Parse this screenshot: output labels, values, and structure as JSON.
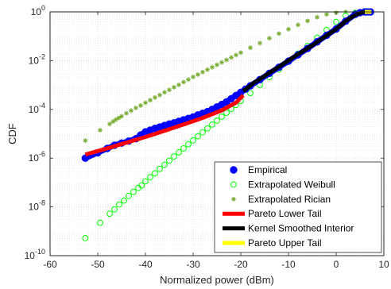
{
  "chart_data": {
    "type": "scatter",
    "title": "",
    "xlabel": "Normalized power (dBm)",
    "ylabel": "CDF",
    "xlim": [
      -60,
      10
    ],
    "ylim_log10": [
      -10,
      0
    ],
    "y_scale": "log",
    "grid": "major and minor, dotted",
    "legend_position": "bottom-right",
    "x_ticks": [
      "-60",
      "-50",
      "-40",
      "-30",
      "-20",
      "-10",
      "0",
      "10"
    ],
    "y_ticks": [
      {
        "base": "10",
        "exp": "-10"
      },
      {
        "base": "10",
        "exp": "-8"
      },
      {
        "base": "10",
        "exp": "-6"
      },
      {
        "base": "10",
        "exp": "-4"
      },
      {
        "base": "10",
        "exp": "-2"
      },
      {
        "base": "10",
        "exp": "0"
      }
    ],
    "series": [
      {
        "name": "Empirical",
        "marker": "filled-circle",
        "color": "#0000ff",
        "x": [
          -52.6,
          -50.0,
          -48.0,
          -46.5,
          -45.0,
          -43.5,
          -42.0,
          -41.0,
          -40.0,
          -39.0,
          -38.0,
          -37.0,
          -36.0,
          -35.0,
          -34.0,
          -33.0,
          -32.0,
          -31.0,
          -30.0,
          -29.0,
          -28.0,
          -27.0,
          -26.0,
          -25.0,
          -24.0,
          -23.0,
          -22.0,
          -21.0,
          -20.0,
          -19.0,
          -18.0,
          -16.0,
          -14.0,
          -12.0,
          -10.0,
          -8.0,
          -6.0,
          -4.0,
          -2.0,
          0.0,
          2.0,
          4.0,
          5.0,
          6.0,
          6.5,
          7.2
        ],
        "log10_y": [
          -6.0,
          -5.78,
          -5.6,
          -5.47,
          -5.38,
          -5.3,
          -5.2,
          -5.05,
          -4.92,
          -4.85,
          -4.78,
          -4.72,
          -4.66,
          -4.6,
          -4.55,
          -4.49,
          -4.43,
          -4.37,
          -4.31,
          -4.23,
          -4.16,
          -4.09,
          -4.0,
          -3.9,
          -3.8,
          -3.69,
          -3.56,
          -3.43,
          -3.3,
          -3.17,
          -3.03,
          -2.78,
          -2.52,
          -2.27,
          -2.02,
          -1.76,
          -1.5,
          -1.23,
          -0.96,
          -0.7,
          -0.38,
          -0.1,
          -0.03,
          0.0,
          0.0,
          0.0
        ]
      },
      {
        "name": "Extrapolated Weibull",
        "marker": "open-circle",
        "color": "#00ff00",
        "x": [
          -52.6,
          -49.5,
          -47.5,
          -46.5,
          -45.5,
          -44.5,
          -43.5,
          -42.5,
          -41.5,
          -40.8,
          -40.0,
          -39.0,
          -38.0,
          -37.0,
          -36.0,
          -35.0,
          -34.0,
          -33.0,
          -32.0,
          -31.0,
          -30.0,
          -29.0,
          -28.0,
          -27.0,
          -26.0,
          -25.0,
          -24.0,
          -23.0,
          -22.0,
          -21.0,
          -20.0,
          -18.0,
          -16.0,
          -14.0,
          -12.0,
          -10.0,
          -8.0,
          -6.0,
          -4.0,
          -2.0,
          0.0,
          2.0,
          4.0,
          6.0,
          7.2
        ],
        "log10_y": [
          -9.28,
          -8.65,
          -8.28,
          -8.1,
          -7.9,
          -7.74,
          -7.55,
          -7.38,
          -7.22,
          -7.12,
          -6.95,
          -6.78,
          -6.62,
          -6.44,
          -6.27,
          -6.1,
          -5.93,
          -5.76,
          -5.6,
          -5.43,
          -5.27,
          -5.1,
          -4.94,
          -4.78,
          -4.62,
          -4.46,
          -4.3,
          -4.14,
          -3.98,
          -3.82,
          -3.65,
          -3.33,
          -3.0,
          -2.68,
          -2.36,
          -2.04,
          -1.71,
          -1.39,
          -1.06,
          -0.74,
          -0.41,
          -0.15,
          -0.04,
          0.0,
          0.0
        ]
      },
      {
        "name": "Extrapolated Rician",
        "marker": "asterisk",
        "color": "#77ac30",
        "x": [
          -52.6,
          -49.5,
          -47.5,
          -46.8,
          -46.2,
          -45.6,
          -45.0,
          -44.0,
          -43.0,
          -42.0,
          -41.0,
          -40.0,
          -39.0,
          -38.0,
          -37.0,
          -36.0,
          -35.0,
          -34.0,
          -33.0,
          -32.0,
          -31.0,
          -30.0,
          -29.0,
          -28.0,
          -27.0,
          -26.0,
          -25.0,
          -24.0,
          -23.0,
          -22.0,
          -21.0,
          -20.0,
          -18.0,
          -16.0,
          -14.0,
          -12.0,
          -10.0,
          -8.0,
          -6.0,
          -4.0,
          -2.0,
          0.0,
          2.0,
          4.0,
          5.0,
          6.0
        ],
        "log10_y": [
          -5.28,
          -4.85,
          -4.6,
          -4.5,
          -4.42,
          -4.35,
          -4.28,
          -4.16,
          -4.05,
          -3.94,
          -3.84,
          -3.73,
          -3.62,
          -3.51,
          -3.41,
          -3.3,
          -3.2,
          -3.09,
          -2.99,
          -2.88,
          -2.78,
          -2.67,
          -2.57,
          -2.47,
          -2.37,
          -2.27,
          -2.17,
          -2.07,
          -1.97,
          -1.87,
          -1.77,
          -1.67,
          -1.47,
          -1.28,
          -1.08,
          -0.89,
          -0.71,
          -0.53,
          -0.37,
          -0.22,
          -0.1,
          -0.03,
          0.0,
          0.0,
          0.0,
          0.0
        ]
      },
      {
        "name": "Pareto Lower Tail",
        "marker": "line",
        "color": "#ff0000",
        "x": [
          -52.6,
          -48.0,
          -44.0,
          -40.0,
          -36.0,
          -32.0,
          -28.0,
          -24.0,
          -21.0,
          -19.5
        ],
        "log10_y": [
          -5.85,
          -5.6,
          -5.36,
          -5.13,
          -4.88,
          -4.62,
          -4.35,
          -4.04,
          -3.72,
          -3.42
        ]
      },
      {
        "name": "Kernel Smoothed Interior",
        "marker": "line",
        "color": "#000000",
        "x": [
          -19.5,
          -17.0,
          -14.0,
          -11.0,
          -8.0,
          -5.0,
          -2.0,
          0.0,
          2.0,
          3.5,
          5.0,
          6.0
        ],
        "log10_y": [
          -3.25,
          -2.88,
          -2.5,
          -2.12,
          -1.74,
          -1.37,
          -0.97,
          -0.7,
          -0.38,
          -0.18,
          -0.05,
          0.0
        ]
      },
      {
        "name": "Pareto Upper Tail",
        "marker": "line",
        "color": "#ffff00",
        "x": [
          6.0,
          6.5,
          7.0,
          7.4
        ],
        "log10_y": [
          0.0,
          0.0,
          0.0,
          0.0
        ]
      }
    ]
  }
}
